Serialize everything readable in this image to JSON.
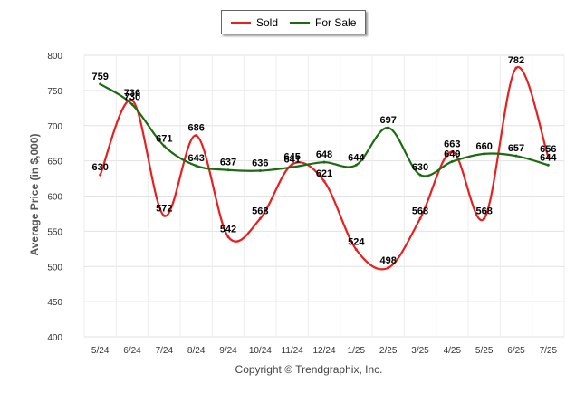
{
  "legend": {
    "sold": "Sold",
    "for_sale": "For Sale"
  },
  "copyright": "Copyright © Trendgraphix, Inc.",
  "colors": {
    "sold": "#e81f1f",
    "for_sale": "#1b6b11"
  },
  "chart_data": {
    "type": "line",
    "ylabel": "Average Price (in $,000)",
    "xlabel": "",
    "ylim": [
      400,
      800
    ],
    "yticks": [
      400,
      450,
      500,
      550,
      600,
      650,
      700,
      750,
      800
    ],
    "grid": true,
    "legend_position": "top-center",
    "categories": [
      "5/24",
      "6/24",
      "7/24",
      "8/24",
      "9/24",
      "10/24",
      "11/24",
      "12/24",
      "1/25",
      "2/25",
      "3/25",
      "4/25",
      "5/25",
      "6/25",
      "7/25"
    ],
    "series": [
      {
        "name": "Sold",
        "values": [
          630,
          736,
          572,
          686,
          542,
          568,
          645,
          621,
          524,
          498,
          568,
          663,
          568,
          782,
          656
        ]
      },
      {
        "name": "For Sale",
        "values": [
          759,
          730,
          671,
          643,
          637,
          636,
          641,
          648,
          644,
          697,
          630,
          649,
          660,
          657,
          644
        ]
      }
    ]
  }
}
